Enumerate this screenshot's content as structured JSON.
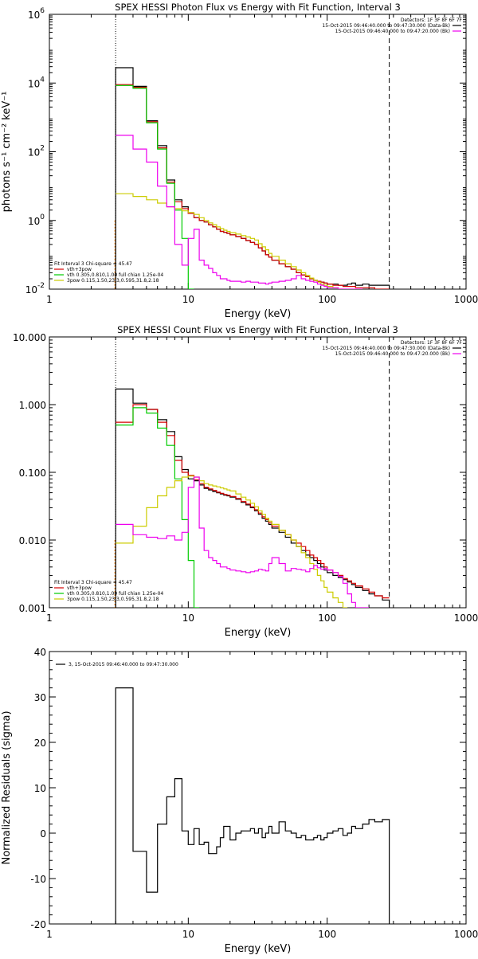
{
  "colors": {
    "data": "#000000",
    "total": "#d40000",
    "thermal": "#00cc00",
    "powerlaw": "#cccc00",
    "background": "#ee00ee",
    "threshold": "#ff8000"
  },
  "chart_data": [
    {
      "type": "line",
      "title": "SPEX HESSI Photon Flux vs Energy with Fit Function, Interval 3",
      "xlabel": "Energy (keV)",
      "ylabel": "photons s⁻¹ cm⁻² keV⁻¹",
      "xscale": "log",
      "yscale": "log",
      "xlim": [
        1,
        1000
      ],
      "ylim": [
        0.01,
        1000000
      ],
      "xticks": [
        {
          "v": 1,
          "label": "1"
        },
        {
          "v": 10,
          "label": "10"
        },
        {
          "v": 100,
          "label": "100"
        },
        {
          "v": 1000,
          "label": "1000"
        }
      ],
      "yticks": [
        {
          "v": 0.01,
          "b": "10",
          "e": "-2"
        },
        {
          "v": 1,
          "b": "10",
          "e": "0"
        },
        {
          "v": 100,
          "b": "10",
          "e": "2"
        },
        {
          "v": 10000,
          "b": "10",
          "e": "4"
        },
        {
          "v": 1000000,
          "b": "10",
          "e": "6"
        }
      ],
      "vlines": [
        {
          "x": 3.0,
          "style": "dotted"
        },
        {
          "x": 280,
          "style": "dashed"
        }
      ],
      "legend_right": {
        "header": "Detectors: 1F 3F 8F 6F 7F",
        "entries": [
          {
            "text": "15-Oct-2015 09:46:40.000 to 09:47:30.000 (Data-Bk)",
            "color": "data"
          },
          {
            "text": "15-Oct-2015 09:46:40.000 to 09:47:20.000 (Bk)",
            "color": "background"
          }
        ]
      },
      "legend_left": {
        "header": "Fit Interval 3   Chi-square = 45.47",
        "entries": [
          {
            "text": "vth+3pow",
            "color": "total"
          },
          {
            "text": "vth 0.305,0.810,1.00  full chian 1.25e-04",
            "color": "thermal"
          },
          {
            "text": "3pow 0.115,1.50,23.3,0.595,31.8,2.18",
            "color": "powerlaw"
          }
        ]
      },
      "edges": [
        3.0,
        3.5,
        4.0,
        4.5,
        5.0,
        5.5,
        6.0,
        6.5,
        7.0,
        7.5,
        8.0,
        8.5,
        9.0,
        9.5,
        10.0,
        10.5,
        11.0,
        12.0,
        13.0,
        14.0,
        15.0,
        16.0,
        17.0,
        18.0,
        19.0,
        20.0,
        22.0,
        24.0,
        26.0,
        28.0,
        30.0,
        32.0,
        34.0,
        36.0,
        38.0,
        40.0,
        45.0,
        50.0,
        55.0,
        60.0,
        65.0,
        70.0,
        75.0,
        80.0,
        85.0,
        90.0,
        95.0,
        100.0,
        110.0,
        120.0,
        130.0,
        140.0,
        150.0,
        160.0,
        180.0,
        200.0,
        220.0,
        250.0,
        280.0
      ],
      "series": [
        {
          "key": "data",
          "color": "data",
          "values": [
            28000,
            28000,
            8000,
            8000,
            800,
            800,
            150,
            150,
            15,
            15,
            4,
            4,
            2.5,
            2.5,
            1.6,
            1.6,
            1.2,
            1.0,
            0.9,
            0.75,
            0.65,
            0.55,
            0.48,
            0.45,
            0.42,
            0.38,
            0.34,
            0.3,
            0.26,
            0.23,
            0.2,
            0.16,
            0.13,
            0.1,
            0.085,
            0.07,
            0.055,
            0.045,
            0.038,
            0.03,
            0.026,
            0.023,
            0.02,
            0.018,
            0.017,
            0.016,
            0.015,
            0.014,
            0.014,
            0.013,
            0.013,
            0.014,
            0.015,
            0.013,
            0.014,
            0.013,
            0.013,
            0.013
          ]
        },
        {
          "key": "total",
          "color": "total",
          "values": [
            9000,
            9000,
            7500,
            7500,
            750,
            750,
            130,
            130,
            13,
            13,
            3.5,
            3.5,
            2.2,
            2.2,
            1.6,
            1.6,
            1.2,
            1.0,
            0.9,
            0.75,
            0.65,
            0.55,
            0.48,
            0.45,
            0.42,
            0.38,
            0.34,
            0.3,
            0.26,
            0.23,
            0.2,
            0.16,
            0.13,
            0.1,
            0.085,
            0.07,
            0.055,
            0.045,
            0.038,
            0.03,
            0.026,
            0.023,
            0.02,
            0.018,
            0.017,
            0.016,
            0.015,
            0.014,
            0.013,
            0.013,
            0.012,
            0.012,
            0.012,
            0.011,
            0.011,
            0.011,
            0.01,
            0.01
          ]
        },
        {
          "key": "thermal",
          "color": "thermal",
          "values": [
            8500,
            8500,
            7000,
            7000,
            700,
            700,
            120,
            120,
            12,
            12,
            2.0,
            2.0,
            0.3,
            0.3,
            0.01,
            0.01
          ]
        },
        {
          "key": "powerlaw",
          "color": "powerlaw",
          "values": [
            6.0,
            6.0,
            5.0,
            5.0,
            4.0,
            4.0,
            3.2,
            3.2,
            2.5,
            2.5,
            2.2,
            2.2,
            1.9,
            1.9,
            1.7,
            1.7,
            1.5,
            1.2,
            1.0,
            0.85,
            0.75,
            0.65,
            0.58,
            0.52,
            0.48,
            0.44,
            0.4,
            0.36,
            0.33,
            0.3,
            0.27,
            0.21,
            0.17,
            0.14,
            0.11,
            0.09,
            0.07,
            0.055,
            0.045,
            0.036,
            0.03,
            0.025,
            0.021,
            0.018,
            0.016,
            0.014,
            0.013,
            0.012,
            0.011,
            0.01
          ]
        },
        {
          "key": "background",
          "color": "background",
          "values": [
            300,
            300,
            120,
            120,
            50,
            50,
            10,
            10,
            2.5,
            2.5,
            0.2,
            0.2,
            0.05,
            0.05,
            0.3,
            0.3,
            0.55,
            0.07,
            0.05,
            0.04,
            0.03,
            0.025,
            0.02,
            0.02,
            0.018,
            0.017,
            0.017,
            0.016,
            0.017,
            0.016,
            0.016,
            0.015,
            0.015,
            0.014,
            0.015,
            0.016,
            0.017,
            0.018,
            0.02,
            0.025,
            0.02,
            0.018,
            0.017,
            0.016,
            0.014,
            0.013,
            0.012,
            0.011,
            0.011,
            0.01,
            0.01,
            0.01,
            0.01,
            0.01
          ]
        }
      ]
    },
    {
      "type": "line",
      "title": "SPEX HESSI Count Flux vs Energy with Fit Function, Interval 3",
      "xlabel": "Energy (keV)",
      "ylabel": "",
      "xscale": "log",
      "yscale": "log",
      "xlim": [
        1,
        1000
      ],
      "ylim": [
        0.001,
        10
      ],
      "xticks": [
        {
          "v": 1,
          "label": "1"
        },
        {
          "v": 10,
          "label": "10"
        },
        {
          "v": 100,
          "label": "100"
        },
        {
          "v": 1000,
          "label": "1000"
        }
      ],
      "yticks": [
        {
          "v": 0.001,
          "label": "0.001"
        },
        {
          "v": 0.01,
          "label": "0.010"
        },
        {
          "v": 0.1,
          "label": "0.100"
        },
        {
          "v": 1,
          "label": "1.000"
        },
        {
          "v": 10,
          "label": "10.000"
        }
      ],
      "vlines": [
        {
          "x": 3.0,
          "style": "dotted"
        },
        {
          "x": 280,
          "style": "dashed"
        }
      ],
      "legend_right": {
        "header": "Detectors: 1F 3F 8F 6F 7F",
        "entries": [
          {
            "text": "15-Oct-2015 09:46:40.000 to 09:47:30.000 (Data-Bk)",
            "color": "data"
          },
          {
            "text": "15-Oct-2015 09:46:40.000 to 09:47:20.000 (Bk)",
            "color": "background"
          }
        ]
      },
      "legend_left": {
        "header": "Fit Interval 3   Chi-square = 45.47",
        "entries": [
          {
            "text": "vth+3pow",
            "color": "total"
          },
          {
            "text": "vth 0.305,0.810,1.00  full chian 1.25e-04",
            "color": "thermal"
          },
          {
            "text": "3pow 0.115,1.50,23.3,0.595,31.8,2.18",
            "color": "powerlaw"
          }
        ]
      },
      "edges": [
        3.0,
        3.5,
        4.0,
        4.5,
        5.0,
        5.5,
        6.0,
        6.5,
        7.0,
        7.5,
        8.0,
        8.5,
        9.0,
        9.5,
        10.0,
        10.5,
        11.0,
        12.0,
        13.0,
        14.0,
        15.0,
        16.0,
        17.0,
        18.0,
        19.0,
        20.0,
        22.0,
        24.0,
        26.0,
        28.0,
        30.0,
        32.0,
        34.0,
        36.0,
        38.0,
        40.0,
        45.0,
        50.0,
        55.0,
        60.0,
        65.0,
        70.0,
        75.0,
        80.0,
        85.0,
        90.0,
        95.0,
        100.0,
        110.0,
        120.0,
        130.0,
        140.0,
        150.0,
        160.0,
        180.0,
        200.0,
        220.0,
        250.0,
        280.0
      ],
      "series": [
        {
          "key": "data",
          "color": "data",
          "values": [
            1.7,
            1.7,
            1.05,
            1.05,
            0.85,
            0.85,
            0.6,
            0.6,
            0.4,
            0.4,
            0.17,
            0.17,
            0.11,
            0.11,
            0.08,
            0.08,
            0.075,
            0.065,
            0.058,
            0.055,
            0.052,
            0.05,
            0.048,
            0.046,
            0.045,
            0.043,
            0.04,
            0.036,
            0.033,
            0.03,
            0.027,
            0.024,
            0.021,
            0.019,
            0.017,
            0.015,
            0.013,
            0.011,
            0.009,
            0.008,
            0.007,
            0.006,
            0.0055,
            0.005,
            0.0045,
            0.004,
            0.0036,
            0.0033,
            0.003,
            0.0028,
            0.0026,
            0.0024,
            0.0022,
            0.002,
            0.0018,
            0.0016,
            0.0015,
            0.0013
          ]
        },
        {
          "key": "total",
          "color": "total",
          "values": [
            0.55,
            0.55,
            1.0,
            1.0,
            0.85,
            0.85,
            0.55,
            0.55,
            0.35,
            0.35,
            0.15,
            0.15,
            0.1,
            0.1,
            0.09,
            0.09,
            0.078,
            0.068,
            0.06,
            0.057,
            0.054,
            0.051,
            0.049,
            0.047,
            0.046,
            0.044,
            0.041,
            0.037,
            0.034,
            0.031,
            0.028,
            0.025,
            0.022,
            0.02,
            0.018,
            0.016,
            0.014,
            0.012,
            0.01,
            0.009,
            0.008,
            0.007,
            0.006,
            0.0055,
            0.005,
            0.0045,
            0.004,
            0.0036,
            0.0033,
            0.003,
            0.0027,
            0.0025,
            0.0023,
            0.0021,
            0.0019,
            0.0017,
            0.0015,
            0.0014
          ]
        },
        {
          "key": "thermal",
          "color": "thermal",
          "values": [
            0.5,
            0.5,
            0.9,
            0.9,
            0.75,
            0.75,
            0.45,
            0.45,
            0.25,
            0.25,
            0.08,
            0.08,
            0.02,
            0.02,
            0.005,
            0.005,
            0.001
          ]
        },
        {
          "key": "powerlaw",
          "color": "powerlaw",
          "values": [
            0.009,
            0.009,
            0.016,
            0.016,
            0.03,
            0.03,
            0.045,
            0.045,
            0.06,
            0.06,
            0.075,
            0.075,
            0.085,
            0.085,
            0.088,
            0.088,
            0.085,
            0.075,
            0.068,
            0.065,
            0.063,
            0.061,
            0.059,
            0.057,
            0.055,
            0.053,
            0.048,
            0.043,
            0.039,
            0.035,
            0.031,
            0.027,
            0.024,
            0.021,
            0.019,
            0.017,
            0.014,
            0.012,
            0.01,
            0.008,
            0.0065,
            0.0055,
            0.0045,
            0.0037,
            0.003,
            0.0025,
            0.002,
            0.0017,
            0.0014,
            0.0012,
            0.001
          ]
        },
        {
          "key": "background",
          "color": "background",
          "values": [
            0.017,
            0.017,
            0.012,
            0.012,
            0.011,
            0.011,
            0.0105,
            0.0105,
            0.0115,
            0.0115,
            0.01,
            0.01,
            0.013,
            0.013,
            0.06,
            0.06,
            0.085,
            0.015,
            0.007,
            0.0055,
            0.005,
            0.0045,
            0.004,
            0.004,
            0.0038,
            0.0036,
            0.0035,
            0.0034,
            0.0033,
            0.0034,
            0.0035,
            0.0037,
            0.0036,
            0.0035,
            0.0045,
            0.0055,
            0.0045,
            0.0035,
            0.0038,
            0.0037,
            0.0036,
            0.0034,
            0.0038,
            0.0042,
            0.0039,
            0.0037,
            0.0038,
            0.0036,
            0.0033,
            0.0029,
            0.0023,
            0.0016,
            0.0012,
            0.0009,
            0.0008
          ]
        }
      ]
    },
    {
      "type": "line",
      "title": "",
      "xlabel": "Energy (keV)",
      "ylabel": "Normalized Residuals (sigma)",
      "xscale": "log",
      "yscale": "linear",
      "xlim": [
        1,
        1000
      ],
      "ylim": [
        -20,
        40
      ],
      "xticks": [
        {
          "v": 1,
          "label": "1"
        },
        {
          "v": 10,
          "label": "10"
        },
        {
          "v": 100,
          "label": "100"
        },
        {
          "v": 1000,
          "label": "1000"
        }
      ],
      "yticks": [
        {
          "v": -20,
          "label": "-20"
        },
        {
          "v": -10,
          "label": "-10"
        },
        {
          "v": 0,
          "label": "0"
        },
        {
          "v": 10,
          "label": "10"
        },
        {
          "v": 20,
          "label": "20"
        },
        {
          "v": 30,
          "label": "30"
        },
        {
          "v": 40,
          "label": "40"
        }
      ],
      "vlines": [],
      "legend_left": {
        "header": "",
        "entries": [
          {
            "text": "3, 15-Oct-2015 09:46:40.000 to 09:47:30.000",
            "color": "data"
          }
        ]
      },
      "edges": [
        3.0,
        4.0,
        4.5,
        5.0,
        5.5,
        6.0,
        6.5,
        7.0,
        7.5,
        8.0,
        8.5,
        9.0,
        9.5,
        10.0,
        10.5,
        11.0,
        12.0,
        13.0,
        14.0,
        15.0,
        16.0,
        17.0,
        18.0,
        19.0,
        20.0,
        22.0,
        24.0,
        26.0,
        28.0,
        30.0,
        32.0,
        34.0,
        36.0,
        38.0,
        40.0,
        45.0,
        50.0,
        55.0,
        60.0,
        65.0,
        70.0,
        75.0,
        80.0,
        85.0,
        90.0,
        95.0,
        100.0,
        110.0,
        120.0,
        130.0,
        140.0,
        150.0,
        160.0,
        180.0,
        200.0,
        220.0,
        250.0,
        280.0
      ],
      "series": [
        {
          "key": "data",
          "color": "data",
          "values": [
            32,
            -4,
            -4,
            -13,
            -13,
            2,
            2,
            8,
            8,
            12,
            12,
            0.5,
            0.5,
            -2.5,
            -2.5,
            1,
            -2.5,
            -2,
            -4.5,
            -4.5,
            -3,
            -1,
            1.5,
            1.5,
            -1.5,
            0,
            0.5,
            0.5,
            1,
            0,
            1,
            -1,
            0,
            1.5,
            0,
            2.5,
            0.5,
            0,
            -1,
            -0.5,
            -1.5,
            -1.5,
            -1,
            -0.5,
            -1.5,
            -1,
            0,
            0.5,
            1,
            -0.5,
            0,
            1.5,
            1,
            2,
            3,
            2.5,
            3
          ]
        }
      ]
    }
  ]
}
